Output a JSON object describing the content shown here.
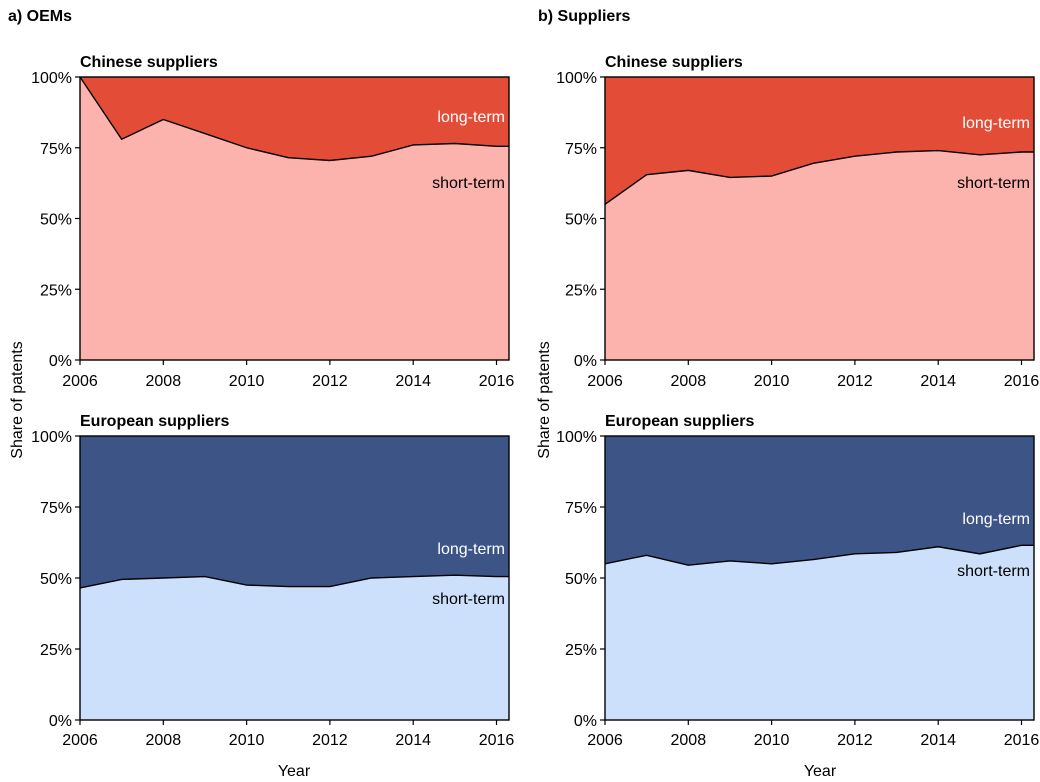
{
  "panels": [
    {
      "id": "oems",
      "title": "a) OEMs"
    },
    {
      "id": "suppliers",
      "title": "b) Suppliers"
    }
  ],
  "axes": {
    "ylabel": "Share of patents",
    "xlabel": "Year",
    "xticks": [
      "2006",
      "2008",
      "2010",
      "2012",
      "2014",
      "2016"
    ],
    "yticks": [
      "0%",
      "25%",
      "50%",
      "75%",
      "100%"
    ]
  },
  "labels": {
    "long": "long-term",
    "short": "short-term"
  },
  "colors": {
    "chinese_long": "#e34d37",
    "chinese_short": "#fdb3ad",
    "european_long": "#3d5486",
    "european_short": "#cde0fb"
  },
  "chart_data": [
    {
      "type": "area",
      "panel": "a) OEMs",
      "title": "Chinese suppliers",
      "xlabel": "",
      "ylabel": "Share of patents",
      "xlim": [
        2006,
        2016.3
      ],
      "ylim": [
        0,
        100
      ],
      "x": [
        2006,
        2007,
        2008,
        2009,
        2010,
        2011,
        2012,
        2013,
        2014,
        2015,
        2016
      ],
      "series": [
        {
          "name": "short-term",
          "values": [
            100,
            78,
            85,
            80,
            75,
            71.5,
            70.5,
            72,
            76,
            76.5,
            75.5
          ]
        },
        {
          "name": "long-term",
          "values": [
            0,
            22,
            15,
            20,
            25,
            28.5,
            29.5,
            28,
            24,
            23.5,
            24.5
          ]
        }
      ]
    },
    {
      "type": "area",
      "panel": "b) Suppliers",
      "title": "Chinese suppliers",
      "xlabel": "",
      "ylabel": "Share of patents",
      "xlim": [
        2006,
        2016.3
      ],
      "ylim": [
        0,
        100
      ],
      "x": [
        2006,
        2007,
        2008,
        2009,
        2010,
        2011,
        2012,
        2013,
        2014,
        2015,
        2016
      ],
      "series": [
        {
          "name": "short-term",
          "values": [
            55,
            65.5,
            67,
            64.5,
            65,
            69.5,
            72,
            73.5,
            74,
            72.5,
            73.5
          ]
        },
        {
          "name": "long-term",
          "values": [
            45,
            34.5,
            33,
            35.5,
            35,
            30.5,
            28,
            26.5,
            26,
            27.5,
            26.5
          ]
        }
      ]
    },
    {
      "type": "area",
      "panel": "a) OEMs",
      "title": "European suppliers",
      "xlabel": "Year",
      "ylabel": "Share of patents",
      "xlim": [
        2006,
        2016.3
      ],
      "ylim": [
        0,
        100
      ],
      "x": [
        2006,
        2007,
        2008,
        2009,
        2010,
        2011,
        2012,
        2013,
        2014,
        2015,
        2016
      ],
      "series": [
        {
          "name": "short-term",
          "values": [
            46.5,
            49.5,
            50,
            50.5,
            47.5,
            47,
            47,
            50,
            50.5,
            51,
            50.5
          ]
        },
        {
          "name": "long-term",
          "values": [
            53.5,
            50.5,
            50,
            49.5,
            52.5,
            53,
            53,
            50,
            49.5,
            49,
            49.5
          ]
        }
      ]
    },
    {
      "type": "area",
      "panel": "b) Suppliers",
      "title": "European suppliers",
      "xlabel": "Year",
      "ylabel": "Share of patents",
      "xlim": [
        2006,
        2016.3
      ],
      "ylim": [
        0,
        100
      ],
      "x": [
        2006,
        2007,
        2008,
        2009,
        2010,
        2011,
        2012,
        2013,
        2014,
        2015,
        2016
      ],
      "series": [
        {
          "name": "short-term",
          "values": [
            55,
            58,
            54.5,
            56,
            55,
            56.5,
            58.5,
            59,
            61,
            58.5,
            61.5
          ]
        },
        {
          "name": "long-term",
          "values": [
            45,
            42,
            45.5,
            44,
            45,
            43.5,
            41.5,
            41,
            39,
            41.5,
            38.5
          ]
        }
      ]
    }
  ]
}
